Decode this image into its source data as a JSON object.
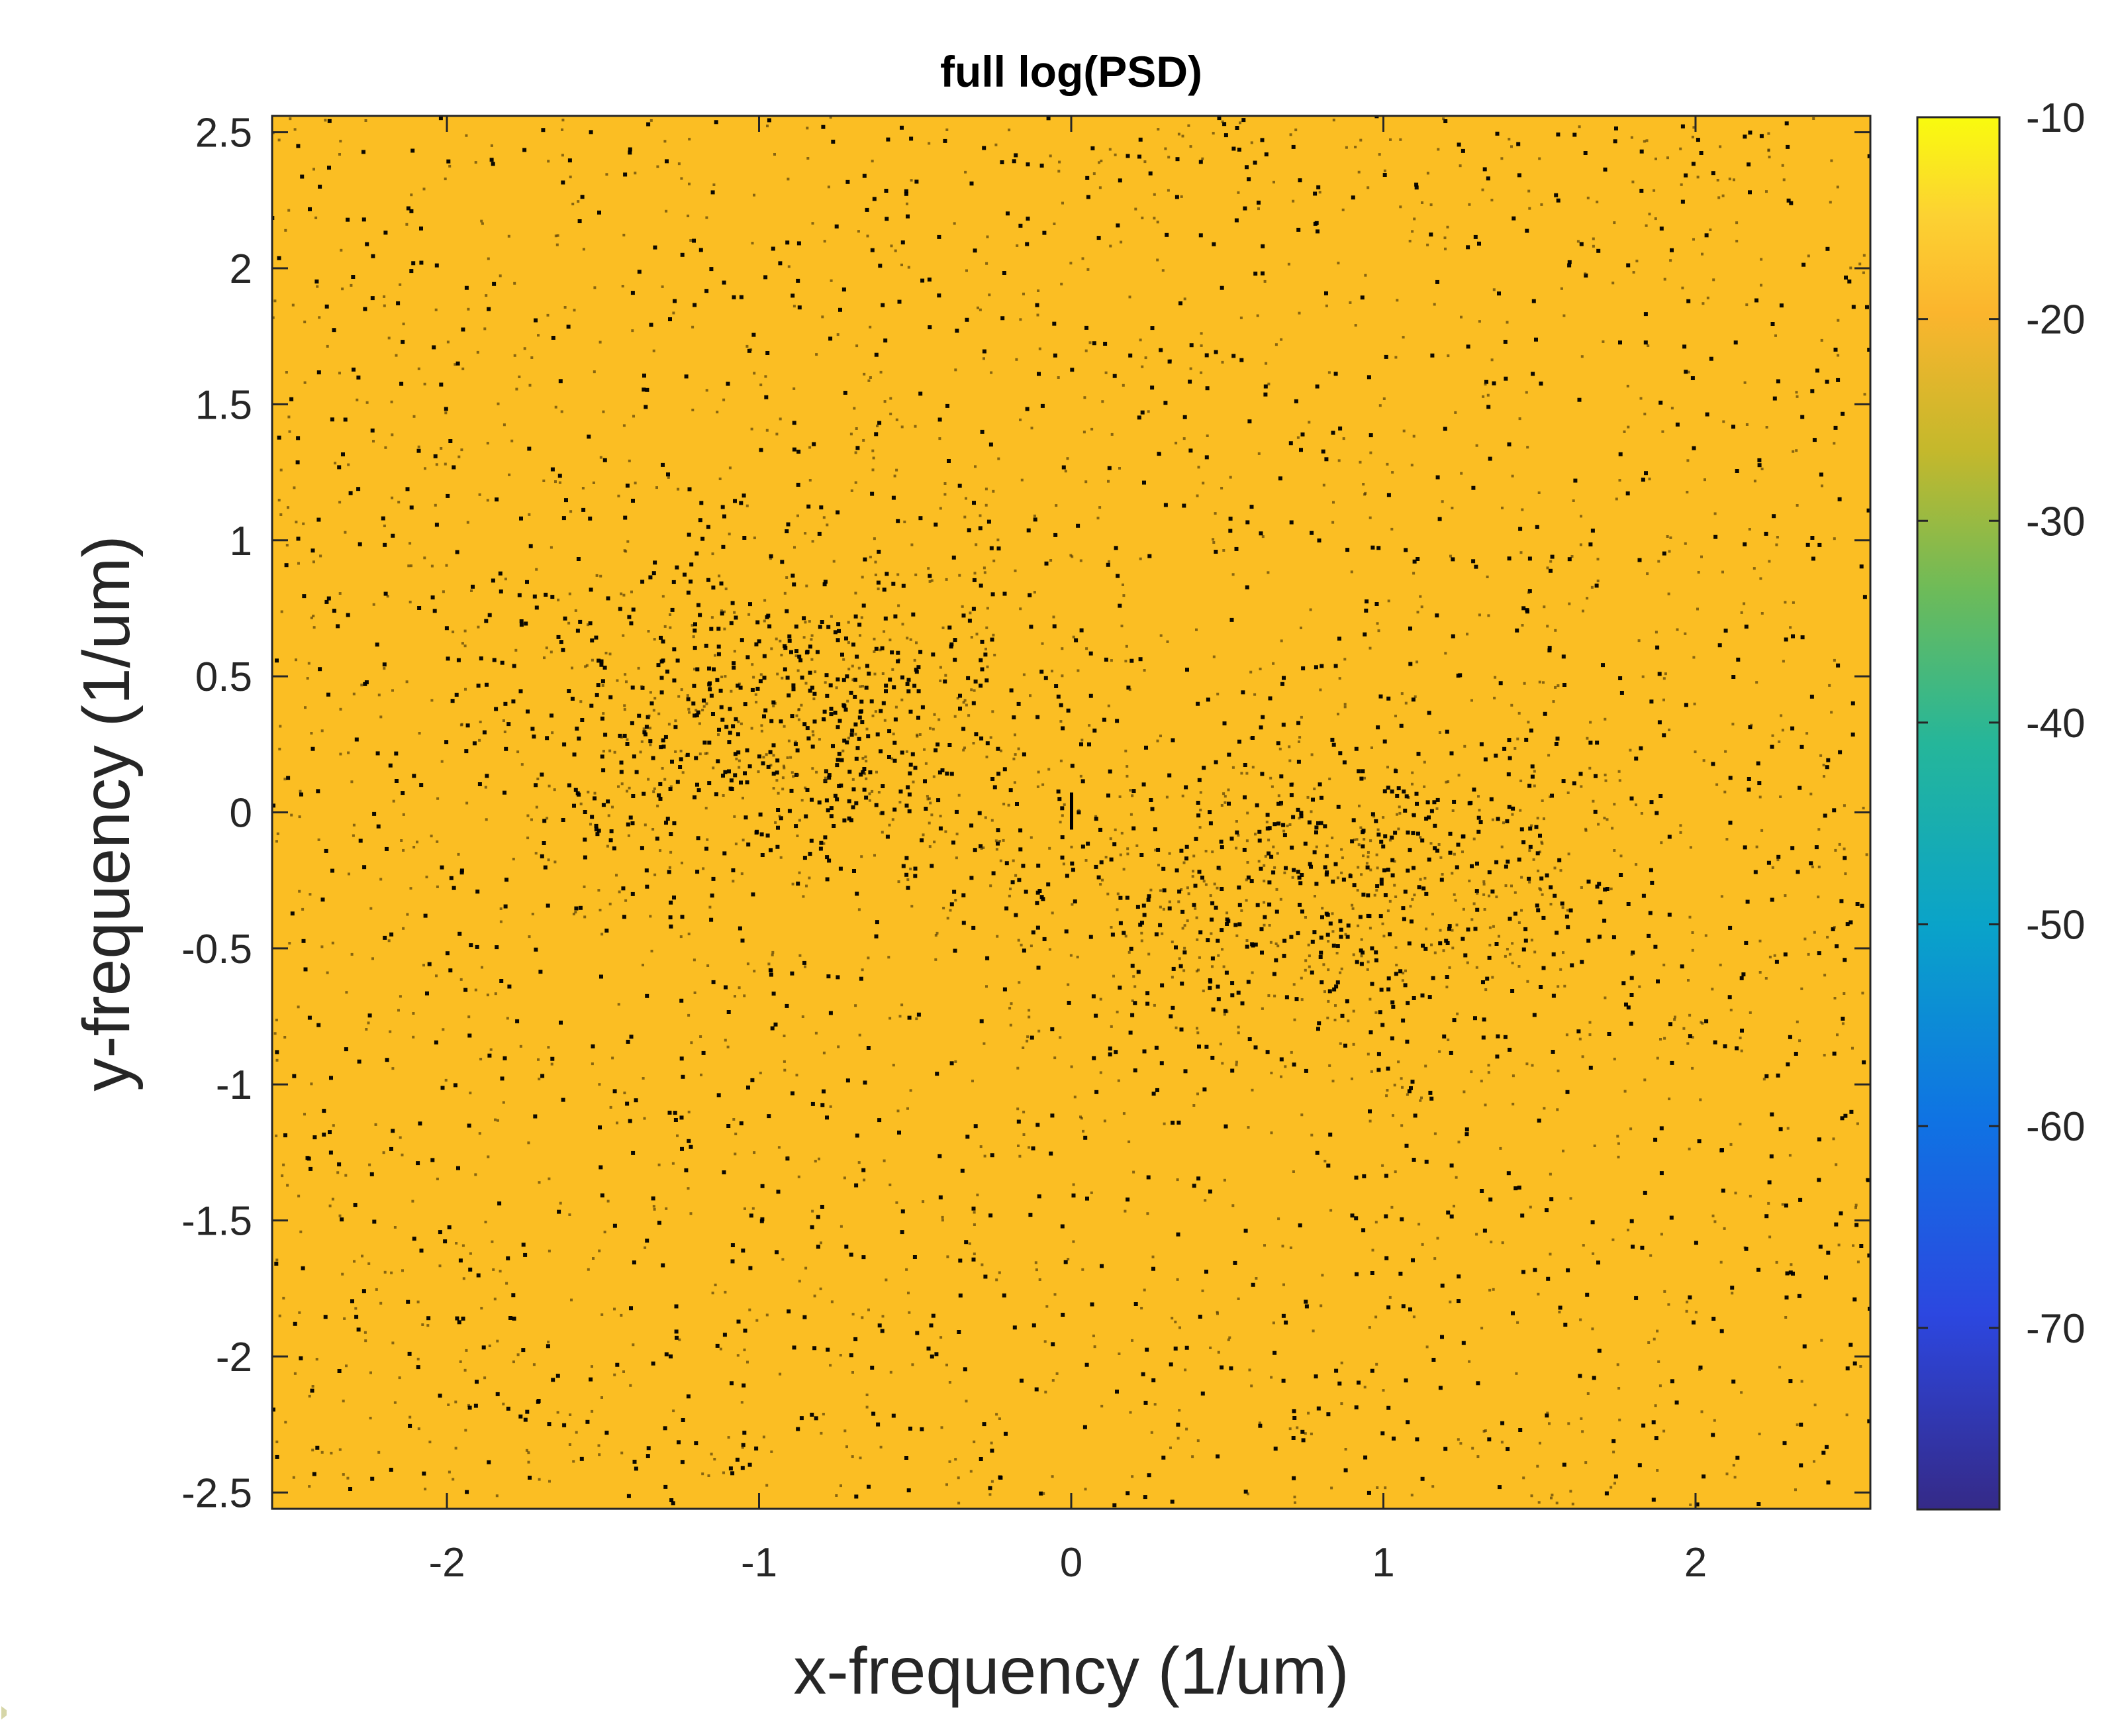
{
  "chart_data": {
    "type": "heatmap",
    "title": "full log(PSD)",
    "xlabel": "x-frequency (1/um)",
    "ylabel": "y-frequency (1/um)",
    "xlim": [
      -2.56,
      2.56
    ],
    "ylim": [
      -2.56,
      2.56
    ],
    "x_ticks": [
      -2,
      -1,
      0,
      1,
      2
    ],
    "x_tick_labels": [
      "-2",
      "-1",
      "0",
      "1",
      "2"
    ],
    "y_ticks": [
      2.5,
      2,
      1.5,
      1,
      0.5,
      0,
      -0.5,
      -1,
      -1.5,
      -2,
      -2.5
    ],
    "y_tick_labels": [
      "2.5",
      "2",
      "1.5",
      "1",
      "0.5",
      "0",
      "-0.5",
      "-1",
      "-1.5",
      "-2",
      "-2.5"
    ],
    "colormap": "parula",
    "colorbar": {
      "range": [
        -79,
        -10
      ],
      "ticks": [
        -10,
        -20,
        -30,
        -40,
        -50,
        -60,
        -70
      ],
      "tick_labels": [
        "-10",
        "-20",
        "-30",
        "-40",
        "-50",
        "-60",
        "-70"
      ]
    },
    "dominant_value": -20,
    "dominant_color": "#fbbe23",
    "speckle_color": "#000000",
    "speckle_clusters": [
      {
        "center": [
          -0.9,
          0.35
        ],
        "spread": [
          0.45,
          0.3
        ]
      },
      {
        "center": [
          0.8,
          -0.3
        ],
        "spread": [
          0.5,
          0.3
        ]
      }
    ],
    "center_mark": {
      "x": 0.0,
      "y": 0.0
    },
    "grid": false,
    "box": true
  }
}
